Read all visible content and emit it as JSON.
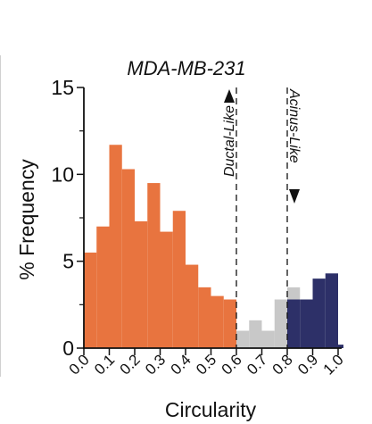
{
  "chart_data": {
    "type": "bar",
    "title": "MDA-MB-231",
    "xlabel": "Circularity",
    "ylabel": "% Frequency",
    "xlim": [
      0,
      1.0
    ],
    "ylim": [
      0,
      15
    ],
    "bin_width": 0.05,
    "x_ticks": [
      "0.0",
      "0.1",
      "0.2",
      "0.3",
      "0.4",
      "0.5",
      "0.6",
      "0.7",
      "0.8",
      "0.9",
      "1.0"
    ],
    "y_ticks": [
      "0",
      "5",
      "10",
      "15"
    ],
    "grid": false,
    "series": [
      {
        "color": "#E8743F",
        "bins": [
          {
            "x0": 0.0,
            "value": 5.5
          },
          {
            "x0": 0.05,
            "value": 7.0
          },
          {
            "x0": 0.1,
            "value": 11.7
          },
          {
            "x0": 0.15,
            "value": 10.3
          },
          {
            "x0": 0.2,
            "value": 7.3
          },
          {
            "x0": 0.25,
            "value": 9.5
          },
          {
            "x0": 0.3,
            "value": 6.7
          },
          {
            "x0": 0.35,
            "value": 7.9
          },
          {
            "x0": 0.4,
            "value": 4.8
          },
          {
            "x0": 0.45,
            "value": 3.5
          },
          {
            "x0": 0.5,
            "value": 3.0
          },
          {
            "x0": 0.55,
            "value": 2.8
          }
        ]
      },
      {
        "color": "#C8C8C8",
        "bins": [
          {
            "x0": 0.6,
            "value": 1.0
          },
          {
            "x0": 0.65,
            "value": 1.6
          },
          {
            "x0": 0.7,
            "value": 1.0
          },
          {
            "x0": 0.75,
            "value": 2.8
          },
          {
            "x0": 0.8,
            "value": 3.5
          }
        ]
      },
      {
        "color": "#2D3068",
        "bins": [
          {
            "x0": 0.8,
            "value": 2.8
          },
          {
            "x0": 0.85,
            "value": 2.8
          },
          {
            "x0": 0.9,
            "value": 4.0
          },
          {
            "x0": 0.95,
            "value": 4.3
          },
          {
            "x0": 1.0,
            "value": 0.2
          }
        ]
      }
    ],
    "thresholds": [
      {
        "x": 0.6,
        "label": "Ductal-Like",
        "arrow": "up"
      },
      {
        "x": 0.8,
        "label": "Acinus-Like",
        "arrow": "down"
      }
    ]
  }
}
